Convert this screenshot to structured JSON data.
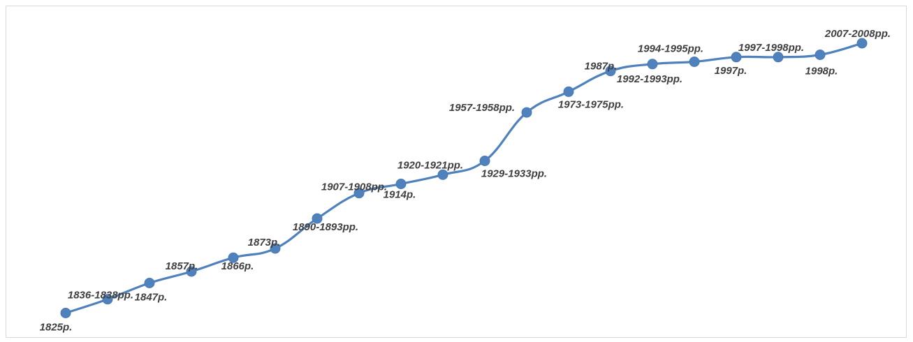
{
  "chart_data": {
    "type": "line",
    "title": "",
    "xlabel": "",
    "ylabel": "",
    "grid": false,
    "legend": "none",
    "line_color": "#4f81bd",
    "marker_color": "#4f81bd",
    "categories": [
      "1825р.",
      "1836-1838рр.",
      "1847р.",
      "1857р.",
      "1866р.",
      "1873р.",
      "1890-1893рр.",
      "1907-1908рр.",
      "1914р.",
      "1920-1921рр.",
      "1929-1933рр.",
      "1957-1958рр.",
      "1973-1975рр.",
      "1987р.",
      "1992-1993рр.",
      "1994-1995рр.",
      "1997р.",
      "1997-1998рр.",
      "1998р.",
      "2007-2008рр."
    ],
    "values": [
      1,
      7,
      14,
      19,
      25,
      29,
      42,
      53,
      57,
      61,
      67,
      88,
      97,
      106,
      109,
      110,
      112,
      112,
      113,
      118
    ],
    "ylim": [
      -4,
      128
    ]
  }
}
